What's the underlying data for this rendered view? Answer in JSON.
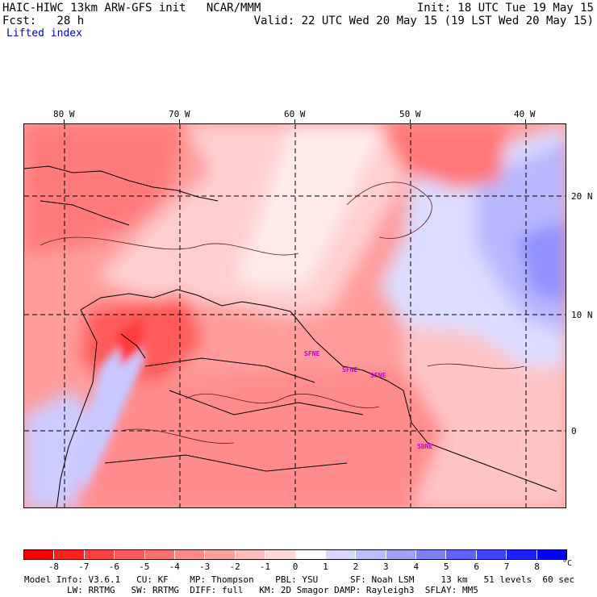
{
  "header": {
    "line1_left": "HAIC-HIWC 13km ARW-GFS init   NCAR/MMM",
    "line1_right": "Init: 18 UTC Tue 19 May 15",
    "line2_left": "Fcst:   28 h",
    "line2_right": "Valid: 22 UTC Wed 20 May 15 (19 LST Wed 20 May 15)",
    "field": "Lifted index"
  },
  "map": {
    "lon_labels": [
      "80 W",
      "70 W",
      "60 W",
      "50 W",
      "40 W"
    ],
    "lat_labels": [
      "20 N",
      "10 N",
      "0"
    ],
    "stations": [
      "SFNE",
      "SFNE",
      "SFNE",
      "SBNE"
    ]
  },
  "colorbar": {
    "ticks": [
      "-8",
      "-7",
      "-6",
      "-5",
      "-4",
      "-3",
      "-2",
      "-1",
      "0",
      "1",
      "2",
      "3",
      "4",
      "5",
      "6",
      "7",
      "8"
    ],
    "unit": "°C",
    "colors": [
      "#ff0000",
      "#ff2020",
      "#ff4040",
      "#ff5a5a",
      "#ff7070",
      "#ff8a8a",
      "#ffa0a0",
      "#ffbcbc",
      "#ffd8d8",
      "#ffffff",
      "#d8d8ff",
      "#bcbcff",
      "#a0a0ff",
      "#8080ff",
      "#6060ff",
      "#4040ff",
      "#2020ff",
      "#0000ff"
    ]
  },
  "footer": {
    "line1": "Model Info: V3.6.1   CU: KF    MP: Thompson    PBL: YSU      SF: Noah LSM     13 km   51 levels  60 sec",
    "line2": "        LW: RRTMG   SW: RRTMG  DIFF: full   KM: 2D Smagor DAMP: Rayleigh3  SFLAY: MM5"
  }
}
